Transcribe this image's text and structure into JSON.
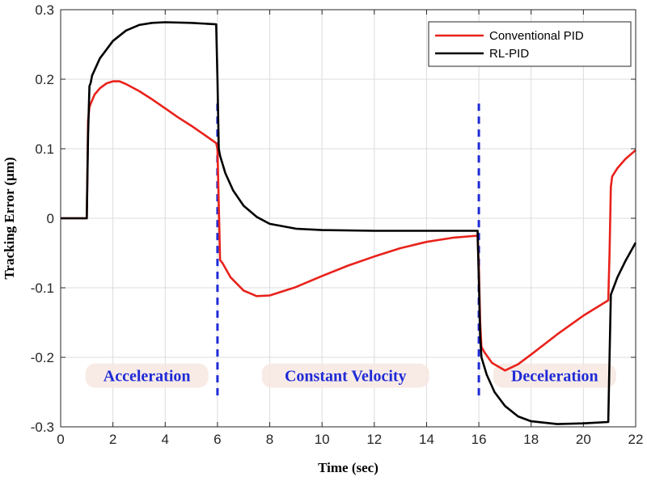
{
  "chart_data": {
    "type": "line",
    "title": "",
    "xlabel": "Time (sec)",
    "ylabel": "Tracking Error (μm)",
    "xlim": [
      0,
      22
    ],
    "ylim": [
      -0.3,
      0.3
    ],
    "xticks": [
      0,
      2,
      4,
      6,
      8,
      10,
      12,
      14,
      16,
      18,
      20,
      22
    ],
    "yticks": [
      -0.3,
      -0.2,
      -0.1,
      0,
      0.1,
      0.2,
      0.3
    ],
    "xtick_labels": [
      "0",
      "2",
      "4",
      "6",
      "8",
      "10",
      "12",
      "14",
      "16",
      "18",
      "20",
      "22"
    ],
    "ytick_labels": [
      "-0.3",
      "-0.2",
      "-0.1",
      "0",
      "0.1",
      "0.2",
      "0.3"
    ],
    "grid": true,
    "legend_position": "top-right",
    "series": [
      {
        "name": "Conventional PID",
        "color": "#e8221b",
        "points": [
          [
            0,
            0
          ],
          [
            1,
            0
          ],
          [
            1.05,
            0.14
          ],
          [
            1.1,
            0.16
          ],
          [
            1.15,
            0.165
          ],
          [
            1.3,
            0.178
          ],
          [
            1.5,
            0.187
          ],
          [
            1.75,
            0.194
          ],
          [
            2,
            0.197
          ],
          [
            2.25,
            0.197
          ],
          [
            2.5,
            0.193
          ],
          [
            3,
            0.183
          ],
          [
            3.5,
            0.171
          ],
          [
            4,
            0.158
          ],
          [
            4.5,
            0.145
          ],
          [
            5,
            0.133
          ],
          [
            5.5,
            0.12
          ],
          [
            5.95,
            0.108
          ],
          [
            6,
            0.1
          ],
          [
            6.05,
            0.02
          ],
          [
            6.1,
            -0.06
          ],
          [
            6.2,
            -0.065
          ],
          [
            6.5,
            -0.085
          ],
          [
            7,
            -0.104
          ],
          [
            7.5,
            -0.112
          ],
          [
            8,
            -0.111
          ],
          [
            9,
            -0.099
          ],
          [
            10,
            -0.083
          ],
          [
            11,
            -0.068
          ],
          [
            12,
            -0.055
          ],
          [
            13,
            -0.043
          ],
          [
            14,
            -0.034
          ],
          [
            15,
            -0.028
          ],
          [
            15.95,
            -0.025
          ],
          [
            16,
            -0.07
          ],
          [
            16.05,
            -0.15
          ],
          [
            16.1,
            -0.185
          ],
          [
            16.2,
            -0.192
          ],
          [
            16.5,
            -0.208
          ],
          [
            17,
            -0.219
          ],
          [
            17.5,
            -0.21
          ],
          [
            18,
            -0.196
          ],
          [
            19,
            -0.167
          ],
          [
            20,
            -0.14
          ],
          [
            20.95,
            -0.118
          ],
          [
            21,
            -0.05
          ],
          [
            21.05,
            0.045
          ],
          [
            21.1,
            0.06
          ],
          [
            21.3,
            0.072
          ],
          [
            21.6,
            0.085
          ],
          [
            22,
            0.098
          ]
        ]
      },
      {
        "name": "RL-PID",
        "color": "#000000",
        "points": [
          [
            0,
            0
          ],
          [
            1,
            0
          ],
          [
            1.05,
            0.12
          ],
          [
            1.1,
            0.19
          ],
          [
            1.15,
            0.195
          ],
          [
            1.2,
            0.205
          ],
          [
            1.5,
            0.23
          ],
          [
            2,
            0.255
          ],
          [
            2.5,
            0.27
          ],
          [
            3,
            0.278
          ],
          [
            3.5,
            0.281
          ],
          [
            4,
            0.282
          ],
          [
            5,
            0.281
          ],
          [
            5.95,
            0.279
          ],
          [
            6,
            0.2
          ],
          [
            6.05,
            0.1
          ],
          [
            6.1,
            0.09
          ],
          [
            6.3,
            0.065
          ],
          [
            6.6,
            0.04
          ],
          [
            7,
            0.018
          ],
          [
            7.5,
            0.002
          ],
          [
            8,
            -0.008
          ],
          [
            9,
            -0.015
          ],
          [
            10,
            -0.017
          ],
          [
            12,
            -0.018
          ],
          [
            14,
            -0.018
          ],
          [
            15.95,
            -0.018
          ],
          [
            16,
            -0.09
          ],
          [
            16.05,
            -0.17
          ],
          [
            16.1,
            -0.2
          ],
          [
            16.3,
            -0.225
          ],
          [
            16.6,
            -0.25
          ],
          [
            17,
            -0.27
          ],
          [
            17.5,
            -0.285
          ],
          [
            18,
            -0.292
          ],
          [
            19,
            -0.296
          ],
          [
            20,
            -0.295
          ],
          [
            20.95,
            -0.293
          ],
          [
            21,
            -0.2
          ],
          [
            21.05,
            -0.11
          ],
          [
            21.1,
            -0.105
          ],
          [
            21.3,
            -0.085
          ],
          [
            21.6,
            -0.062
          ],
          [
            22,
            -0.035
          ]
        ]
      }
    ],
    "vlines": [
      {
        "x": 6,
        "y1": 0.165,
        "y2": -0.26,
        "color": "#1f2bd6",
        "style": "dashed"
      },
      {
        "x": 16,
        "y1": 0.165,
        "y2": -0.26,
        "color": "#1f2bd6",
        "style": "dashed"
      }
    ],
    "annotations": [
      {
        "text": "Acceleration",
        "x": 3.3,
        "y": -0.231,
        "color": "#1f2bd6"
      },
      {
        "text": "Constant Velocity",
        "x": 10.9,
        "y": -0.231,
        "color": "#1f2bd6"
      },
      {
        "text": "Deceleration",
        "x": 18.9,
        "y": -0.231,
        "color": "#1f2bd6"
      }
    ]
  }
}
